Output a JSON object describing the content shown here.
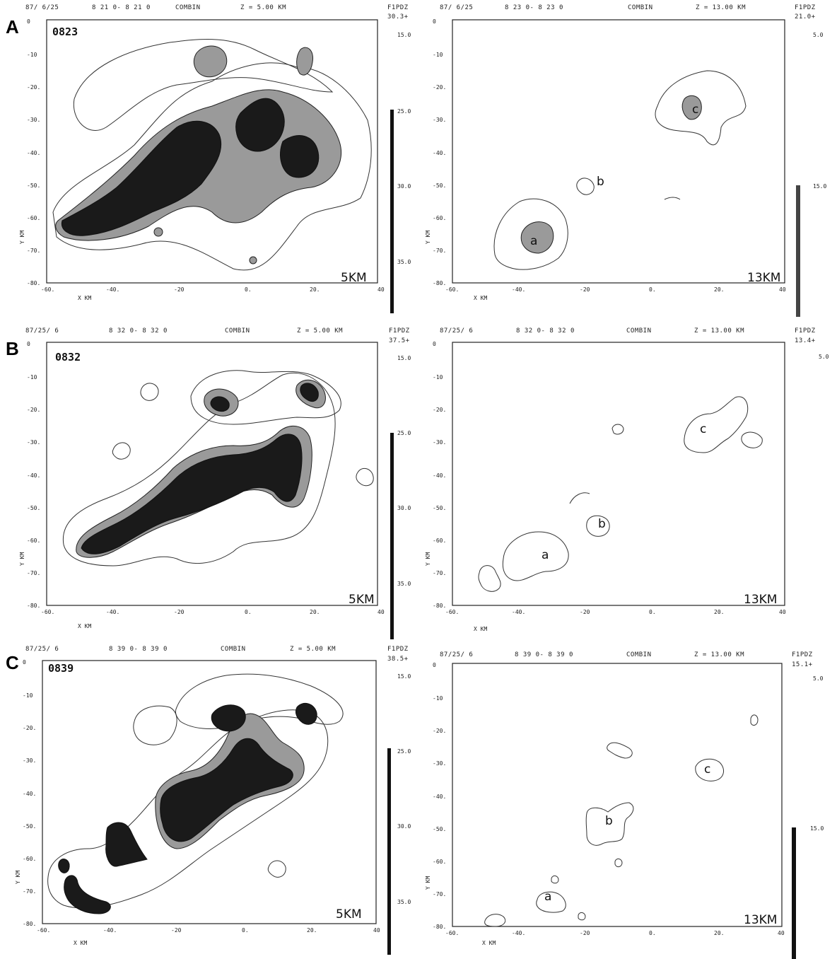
{
  "panel_letters": [
    "A",
    "B",
    "C"
  ],
  "axes": {
    "x_label": "X KM",
    "y_label": "Y KM",
    "x_ticks": [
      "-60.",
      "-40.",
      "-20",
      "0.",
      "20.",
      "40"
    ],
    "y_ticks": [
      "0",
      "-10",
      "-20.",
      "-30.",
      "-40.",
      "-50.",
      "-60.",
      "-70.",
      "-80."
    ]
  },
  "rows": [
    {
      "letter": "A",
      "left": {
        "header": [
          "87/ 6/25",
          "8 21 0- 8 21 0",
          "COMBIN",
          "Z = 5.00 KM",
          "F1PDZ"
        ],
        "max": "30.3+",
        "time": "0823",
        "height": "5KM",
        "scale": [
          "15.0",
          "25.0",
          "30.0",
          "35.0"
        ]
      },
      "right": {
        "header": [
          "87/ 6/25",
          "8 23 0- 8 23 0",
          "COMBIN",
          "Z = 13.00 KM",
          "F1PDZ"
        ],
        "max": "21.0+",
        "height": "13KM",
        "scale": [
          "5.0",
          "15.0"
        ],
        "cells": [
          "c",
          "b",
          "a"
        ]
      }
    },
    {
      "letter": "B",
      "left": {
        "header": [
          "87/25/ 6",
          "8 32 0- 8 32 0",
          "COMBIN",
          "Z = 5.00 KM",
          "F1PDZ"
        ],
        "max": "37.5+",
        "time": "0832",
        "height": "5KM",
        "scale": [
          "15.0",
          "25.0",
          "30.0",
          "35.0"
        ]
      },
      "right": {
        "header": [
          "87/25/ 6",
          "8 32 0- 8 32 0",
          "COMBIN",
          "Z = 13.00 KM",
          "F1PDZ"
        ],
        "max": "13.4+",
        "height": "13KM",
        "scale": [
          "5.0"
        ],
        "cells": [
          "c",
          "b",
          "a"
        ]
      }
    },
    {
      "letter": "C",
      "left": {
        "header": [
          "87/25/ 6",
          "8 39 0- 8 39 0",
          "COMBIN",
          "Z = 5.00 KM",
          "F1PDZ"
        ],
        "max": "38.5+",
        "time": "0839",
        "height": "5KM",
        "scale": [
          "15.0",
          "25.0",
          "30.0",
          "35.0"
        ]
      },
      "right": {
        "header": [
          "87/25/ 6",
          "8 39 0- 8 39 0",
          "COMBIN",
          "Z = 13.00 KM",
          "F1PDZ"
        ],
        "max": "15.1+",
        "height": "13KM",
        "scale": [
          "5.0",
          "15.0"
        ],
        "cells": [
          "c",
          "b",
          "a"
        ]
      }
    }
  ]
}
